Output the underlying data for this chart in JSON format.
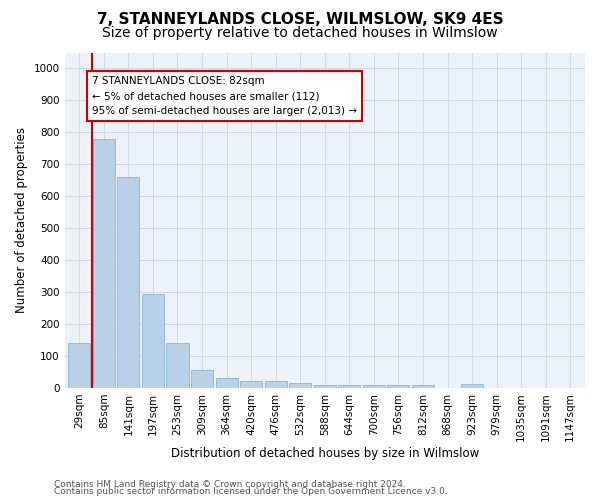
{
  "title": "7, STANNEYLANDS CLOSE, WILMSLOW, SK9 4ES",
  "subtitle": "Size of property relative to detached houses in Wilmslow",
  "xlabel": "Distribution of detached houses by size in Wilmslow",
  "ylabel": "Number of detached properties",
  "categories": [
    "29sqm",
    "85sqm",
    "141sqm",
    "197sqm",
    "253sqm",
    "309sqm",
    "364sqm",
    "420sqm",
    "476sqm",
    "532sqm",
    "588sqm",
    "644sqm",
    "700sqm",
    "756sqm",
    "812sqm",
    "868sqm",
    "923sqm",
    "979sqm",
    "1035sqm",
    "1091sqm",
    "1147sqm"
  ],
  "values": [
    140,
    780,
    660,
    295,
    140,
    55,
    30,
    20,
    20,
    15,
    10,
    10,
    10,
    10,
    8,
    0,
    12,
    0,
    0,
    0,
    0
  ],
  "bar_color": "#b8d0e8",
  "bar_edge_color": "#7aafd4",
  "vline_x": 0.5,
  "vline_color": "#cc0000",
  "ylim": [
    0,
    1050
  ],
  "yticks": [
    0,
    100,
    200,
    300,
    400,
    500,
    600,
    700,
    800,
    900,
    1000
  ],
  "annotation_text": "7 STANNEYLANDS CLOSE: 82sqm\n← 5% of detached houses are smaller (112)\n95% of semi-detached houses are larger (2,013) →",
  "annotation_box_color": "#ffffff",
  "annotation_box_edge": "#cc0000",
  "footer1": "Contains HM Land Registry data © Crown copyright and database right 2024.",
  "footer2": "Contains public sector information licensed under the Open Government Licence v3.0.",
  "title_fontsize": 11,
  "subtitle_fontsize": 10,
  "axis_label_fontsize": 8.5,
  "tick_fontsize": 7.5,
  "annotation_fontsize": 7.5,
  "footer_fontsize": 6.5,
  "grid_color": "#d0d8e8",
  "bg_color": "#edf2f9"
}
